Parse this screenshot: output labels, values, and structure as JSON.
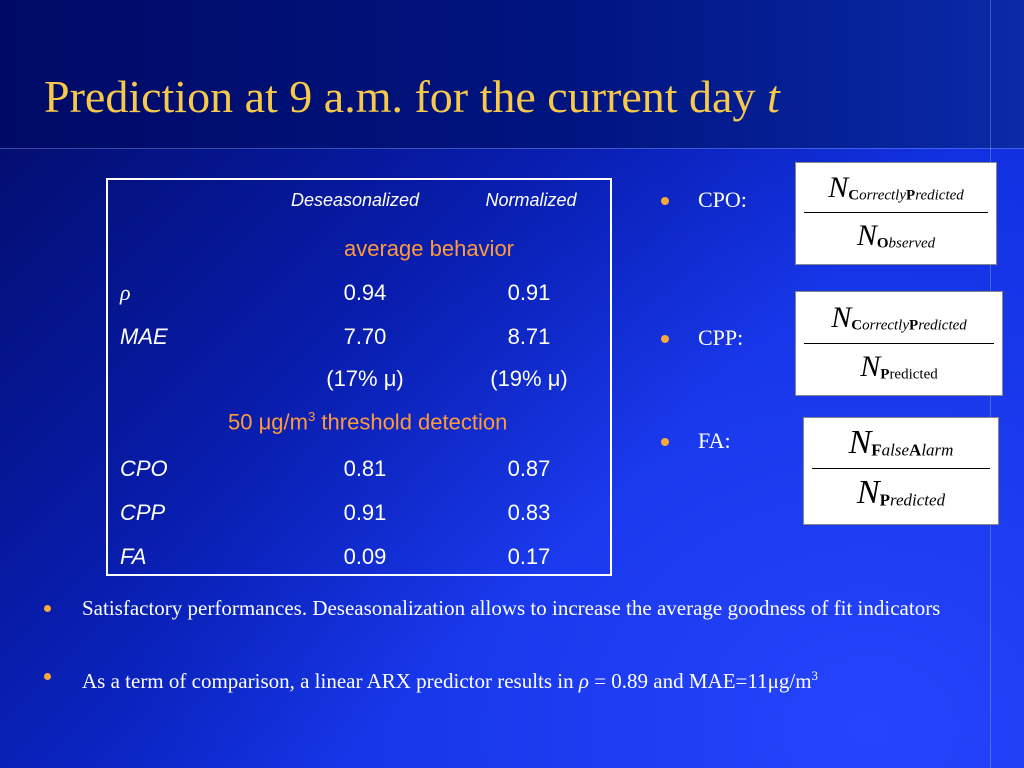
{
  "slide": {
    "title_main": "Prediction at 9 a.m. for the current day ",
    "title_italic": "t"
  },
  "table": {
    "col_headers": [
      "Deseasonalized",
      "Normalized"
    ],
    "section_avg": "average behavior",
    "section_thr_pre": "50 ",
    "section_thr_mu": "μ",
    "section_thr_mid": "g/m",
    "section_thr_sup": "3",
    "section_thr_post": " threshold detection",
    "rows": [
      {
        "label": "ρ",
        "c1": "0.94",
        "c2": "0.91"
      },
      {
        "label": "MAE",
        "c1": "7.70",
        "c2": "8.71"
      },
      {
        "label": "",
        "c1": "(17% μ)",
        "c2": "(19% μ)"
      },
      {
        "label": "CPO",
        "c1": "0.81",
        "c2": "0.87"
      },
      {
        "label": "CPP",
        "c1": "0.91",
        "c2": "0.83"
      },
      {
        "label": "FA",
        "c1": "0.09",
        "c2": "0.17"
      }
    ]
  },
  "metrics": [
    {
      "label": "CPO:",
      "num_sub_b1": "C",
      "num_sub_i1": "orrectly",
      "num_sub_b2": "P",
      "num_sub_i2": "redicted",
      "den_sub_b1": "O",
      "den_sub_i1": "bserved"
    },
    {
      "label": "CPP:",
      "num_sub_b1": "C",
      "num_sub_i1": "orrectly",
      "num_sub_b2": "P",
      "num_sub_i2": "redicted",
      "den_sub_b1": "P",
      "den_sub_i1": "redicted"
    },
    {
      "label": "FA:",
      "num_sub_b1": "F",
      "num_sub_i1": "alse",
      "num_sub_b2": "A",
      "num_sub_i2": "larm",
      "den_sub_b1": "P",
      "den_sub_i1": "redicted"
    }
  ],
  "formula_symbol": "N",
  "notes": {
    "note1": "Satisfactory performances.  Deseasonalization allows to increase the average goodness of  fit indicators",
    "note2_pre": "As a term of  comparison, a linear ARX predictor results in ",
    "note2_rho": "ρ",
    "note2_mid": " = 0.89 and MAE=11",
    "note2_mu": "μ",
    "note2_unit": "g/m",
    "note2_sup": "3"
  },
  "colors": {
    "background": "#1030e0",
    "title": "#f7c84a",
    "section_heading": "#ff9a3a",
    "bullet": "#f7a93a"
  }
}
